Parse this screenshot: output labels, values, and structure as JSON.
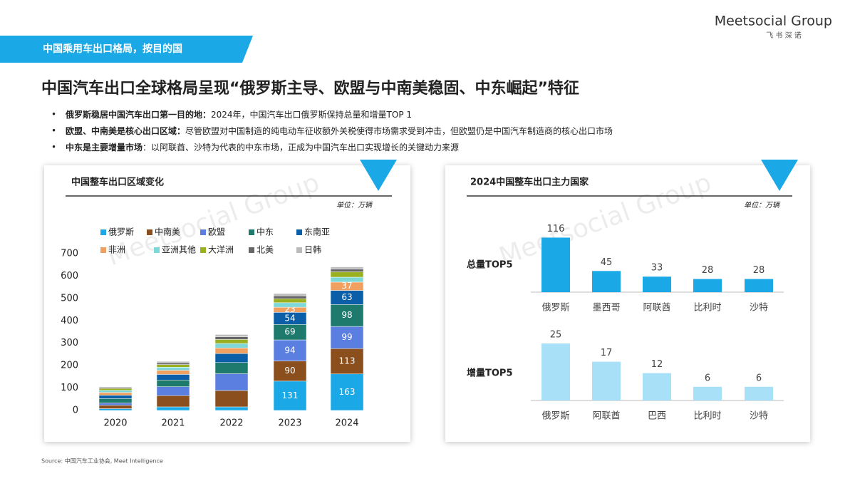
{
  "header": {
    "section_tag": "中国乘用车出口格局，按目的国",
    "title": "中国汽车出口全球格局呈现“俄罗斯主导、欧盟与中南美稳固、中东崛起”特征",
    "logo": "Meetsocial Group",
    "logo_sub": "飞 书 深 诺"
  },
  "bullets": [
    {
      "bold": "俄罗斯稳居中国汽车出口第一目的地：",
      "text": "2024年，中国汽车出口俄罗斯保持总量和增量TOP 1"
    },
    {
      "bold": "欧盟、中南美是核心出口区域：",
      "text": "尽管欧盟对中国制造的纯电动车征收额外关税使得市场需求受到冲击，但欧盟仍是中国汽车制造商的核心出口市场"
    },
    {
      "bold": "中东是主要增量市场",
      "text": "：以阿联酋、沙特为代表的中东市场，正成为中国汽车出口实现增长的关键动力来源"
    }
  ],
  "panels": [
    {
      "title": "中国整车出口区域变化",
      "unit": "单位：万辆"
    },
    {
      "title": "2024中国整车出口主力国家",
      "unit": "单位：万辆"
    }
  ],
  "chart_data": [
    {
      "type": "bar",
      "stacked": true,
      "categories": [
        "2020",
        "2021",
        "2022",
        "2023",
        "2024"
      ],
      "ylim": [
        0,
        700
      ],
      "yticks": [
        0,
        100,
        200,
        300,
        400,
        500,
        600,
        700
      ],
      "series": [
        {
          "name": "俄罗斯",
          "color": "#1aa9e6",
          "values": [
            8,
            16,
            16,
            131,
            163
          ],
          "labels_shown": [
            false,
            false,
            false,
            true,
            true
          ]
        },
        {
          "name": "中南美",
          "color": "#8a4f1d",
          "values": [
            15,
            50,
            73,
            90,
            113
          ],
          "labels_shown": [
            false,
            false,
            false,
            true,
            true
          ]
        },
        {
          "name": "欧盟",
          "color": "#5b7fe0",
          "values": [
            10,
            40,
            75,
            94,
            99
          ],
          "labels_shown": [
            false,
            false,
            false,
            true,
            true
          ]
        },
        {
          "name": "中东",
          "color": "#1f7a6e",
          "values": [
            20,
            30,
            50,
            69,
            98
          ],
          "labels_shown": [
            false,
            false,
            false,
            true,
            true
          ]
        },
        {
          "name": "东南亚",
          "color": "#0a5fa8",
          "values": [
            15,
            25,
            40,
            54,
            63
          ],
          "labels_shown": [
            false,
            false,
            false,
            true,
            true
          ]
        },
        {
          "name": "非洲",
          "color": "#f0a060",
          "values": [
            12,
            18,
            25,
            23,
            37
          ],
          "labels_shown": [
            false,
            false,
            false,
            true,
            true
          ]
        },
        {
          "name": "亚洲其他",
          "color": "#7fd8d8",
          "values": [
            10,
            14,
            20,
            20,
            22
          ]
        },
        {
          "name": "大洋洲",
          "color": "#9ab020",
          "values": [
            8,
            12,
            18,
            18,
            24
          ]
        },
        {
          "name": "北美",
          "color": "#666666",
          "values": [
            5,
            8,
            12,
            13,
            12
          ]
        },
        {
          "name": "日韩",
          "color": "#bbbbbb",
          "values": [
            3,
            6,
            10,
            10,
            10
          ]
        }
      ]
    },
    {
      "type": "bar",
      "label": "总量TOP5",
      "color": "#1aa9e6",
      "categories": [
        "俄罗斯",
        "墨西哥",
        "阿联酋",
        "比利时",
        "沙特"
      ],
      "values": [
        116,
        45,
        33,
        28,
        28
      ]
    },
    {
      "type": "bar",
      "label": "增量TOP5",
      "color": "#a8e0f7",
      "categories": [
        "俄罗斯",
        "阿联酋",
        "巴西",
        "比利时",
        "沙特"
      ],
      "values": [
        25,
        17,
        12,
        6,
        6
      ]
    }
  ],
  "source": "Source: 中国汽车工业协会, Meet Intelligence"
}
